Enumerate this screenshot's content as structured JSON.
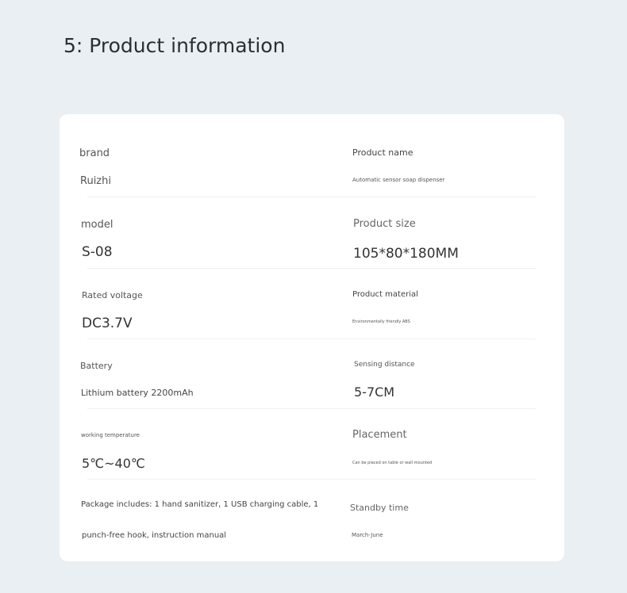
{
  "title": "5: Product information",
  "items": [
    {
      "label": "brand",
      "value": "Ruizhi"
    },
    {
      "label": "Product name",
      "value": "Automatic sensor soap dispenser"
    },
    {
      "label": "model",
      "value": "S-08"
    },
    {
      "label": "Product size",
      "value": "105*80*180MM"
    },
    {
      "label": "Rated voltage",
      "value": "DC3.7V"
    },
    {
      "label": "Product material",
      "value": "Environmentally friendly ABS"
    },
    {
      "label": "Battery",
      "value": "Lithium battery 2200mAh"
    },
    {
      "label": "Sensing distance",
      "value": "5-7CM"
    },
    {
      "label": "working temperature",
      "value": "5℃~40℃"
    },
    {
      "label": "Placement",
      "value": "Can be placed on table or wall mounted"
    },
    {
      "label": "Package includes: 1 hand sanitizer, 1 USB charging cable, 1",
      "value": "punch-free hook, instruction manual"
    },
    {
      "label": "Standby time",
      "value": "March-June"
    }
  ]
}
